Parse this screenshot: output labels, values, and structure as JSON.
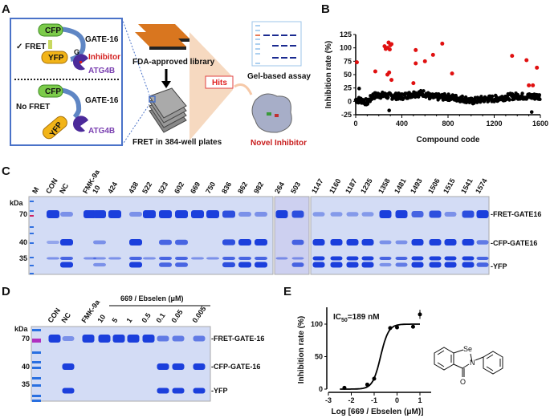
{
  "panels": {
    "a": {
      "label": "A",
      "fret_label": "✓ FRET",
      "no_fret_label": "No FRET",
      "cfp": "CFP",
      "yfp": "YFP",
      "gate16": "GATE-16",
      "g_letter": "G",
      "inhibitor": "Inhibitor",
      "atg4b": "ATG4B",
      "library": "FDA-approved library",
      "plates": "FRET in 384-well plates",
      "hits": "Hits",
      "gel_assay": "Gel-based assay",
      "novel_inhibitor": "Novel Inhibitor",
      "colors": {
        "box": "#4a72c8",
        "cfp": "#7ccb4a",
        "yfp": "#f2b418",
        "atg4b": "#4b2a9a",
        "inhibitor": "#d42020",
        "plate": "#d9761f",
        "funnel": "#f6d9c0"
      }
    },
    "b": {
      "label": "B"
    },
    "c": {
      "label": "C",
      "kda": "kDa",
      "markers": [
        "70",
        "40",
        "35"
      ],
      "band_labels": [
        "-FRET-GATE16",
        "-CFP-GATE16",
        "-YFP"
      ],
      "marker_lane": "M",
      "gels": [
        {
          "lanes": [
            {
              "name": "CON",
              "bands": [
                3,
                0.5,
                1,
                0
              ]
            },
            {
              "name": "NC",
              "bands": [
                1,
                3,
                2,
                3
              ]
            },
            {
              "name": "FMK-9a",
              "bands": [
                3,
                0,
                1,
                0
              ]
            },
            {
              "name": "10",
              "bands": [
                3,
                1,
                1,
                1
              ]
            },
            {
              "name": "424",
              "bands": [
                3,
                0,
                1,
                0
              ]
            },
            {
              "name": "438",
              "bands": [
                1,
                3,
                2,
                3
              ]
            },
            {
              "name": "522",
              "bands": [
                3,
                0,
                1,
                0
              ]
            },
            {
              "name": "523",
              "bands": [
                3,
                2,
                2,
                2
              ]
            },
            {
              "name": "602",
              "bands": [
                3,
                2,
                2,
                2
              ]
            },
            {
              "name": "669",
              "bands": [
                3,
                0,
                1,
                0
              ]
            },
            {
              "name": "750",
              "bands": [
                3,
                0,
                1,
                0
              ]
            },
            {
              "name": "836",
              "bands": [
                2.5,
                2.5,
                2,
                2.5
              ]
            },
            {
              "name": "862",
              "bands": [
                1,
                3,
                2,
                3
              ]
            },
            {
              "name": "982",
              "bands": [
                1,
                3,
                2,
                3
              ]
            }
          ]
        },
        {
          "lanes": [
            {
              "name": "264",
              "bands": [
                3,
                0,
                1,
                0
              ]
            },
            {
              "name": "503",
              "bands": [
                2.5,
                2,
                1,
                2
              ]
            }
          ]
        },
        {
          "lanes": [
            {
              "name": "1147",
              "bands": [
                0.8,
                3,
                3,
                3
              ]
            },
            {
              "name": "1160",
              "bands": [
                0.8,
                3,
                3,
                3
              ]
            },
            {
              "name": "1187",
              "bands": [
                0.8,
                3,
                3,
                3
              ]
            },
            {
              "name": "1235",
              "bands": [
                0.8,
                3,
                3,
                3
              ]
            },
            {
              "name": "1358",
              "bands": [
                3,
                1,
                2,
                1
              ]
            },
            {
              "name": "1481",
              "bands": [
                3,
                1,
                2,
                1.5
              ]
            },
            {
              "name": "1493",
              "bands": [
                2,
                3,
                3,
                3
              ]
            },
            {
              "name": "1506",
              "bands": [
                2.5,
                3,
                3,
                3
              ]
            },
            {
              "name": "1515",
              "bands": [
                1,
                3,
                3,
                3
              ]
            },
            {
              "name": "1541",
              "bands": [
                2.5,
                3,
                3,
                3
              ]
            },
            {
              "name": "1574",
              "bands": [
                3,
                1.5,
                2,
                2
              ]
            }
          ]
        }
      ]
    },
    "d": {
      "label": "D",
      "kda": "kDa",
      "markers": [
        "70",
        "40",
        "35"
      ],
      "band_labels": [
        "-FRET-GATE-16",
        "-CFP-GATE-16",
        "-YFP"
      ],
      "dose_header": "669 / Ebselen (μM)",
      "lanes": [
        {
          "name": "CON",
          "bands": [
            3,
            0,
            0,
            0
          ]
        },
        {
          "name": "NC",
          "bands": [
            1,
            3,
            0,
            3
          ]
        },
        {
          "name": "FMK-9a",
          "bands": [
            3,
            0,
            0,
            0
          ]
        },
        {
          "name": "10",
          "bands": [
            3,
            0,
            0,
            0
          ]
        },
        {
          "name": "5",
          "bands": [
            3,
            0,
            0,
            0
          ]
        },
        {
          "name": "1",
          "bands": [
            3,
            0,
            0,
            0
          ]
        },
        {
          "name": "0.5",
          "bands": [
            3,
            0,
            0,
            0
          ]
        },
        {
          "name": "0.1",
          "bands": [
            1.5,
            3,
            0,
            3
          ]
        },
        {
          "name": "0.05",
          "bands": [
            1.5,
            3,
            0,
            3
          ]
        },
        {
          "name": "0.005",
          "bands": [
            1.5,
            3,
            0,
            3
          ]
        }
      ]
    },
    "e": {
      "label": "E",
      "ic50_prefix": "IC",
      "ic50_sub": "50",
      "ic50_value": "=189 nM",
      "structure": {
        "se": "Se",
        "n": "N",
        "o": "O"
      }
    }
  },
  "chart_data": [
    {
      "type": "scatter",
      "xlabel": "Compound code",
      "ylabel": "Inhibition rate (%)",
      "xlim": [
        0,
        1600
      ],
      "ylim": [
        -25,
        125
      ],
      "xticks": [
        "0",
        "400",
        "800",
        "1200",
        "1600"
      ],
      "yticks": [
        "-25",
        "0",
        "25",
        "50",
        "75",
        "100",
        "125"
      ],
      "grid": false,
      "series": [
        {
          "color": "#e01010",
          "points": [
            [
              10,
              73
            ],
            [
              170,
              56
            ],
            [
              250,
              103
            ],
            [
              260,
              98
            ],
            [
              275,
              100
            ],
            [
              285,
              110
            ],
            [
              295,
              97
            ],
            [
              300,
              105
            ],
            [
              310,
              107
            ],
            [
              275,
              50
            ],
            [
              290,
              54
            ],
            [
              310,
              40
            ],
            [
              500,
              34
            ],
            [
              520,
              96
            ],
            [
              520,
              71
            ],
            [
              600,
              75
            ],
            [
              670,
              87
            ],
            [
              750,
              108
            ],
            [
              835,
              52
            ],
            [
              1355,
              85
            ],
            [
              1480,
              77
            ],
            [
              1500,
              30
            ],
            [
              1535,
              30
            ],
            [
              1570,
              63
            ]
          ]
        },
        {
          "color": "#000000",
          "points": [
            [
              30,
              24
            ],
            [
              290,
              -17
            ],
            [
              1525,
              -20
            ]
          ]
        },
        {
          "color": "#000000",
          "baseline": [
            [
              0,
              3
            ],
            [
              50,
              2
            ],
            [
              100,
              -2
            ],
            [
              150,
              10
            ],
            [
              200,
              12
            ],
            [
              300,
              10
            ],
            [
              400,
              9
            ],
            [
              500,
              14
            ],
            [
              600,
              15
            ],
            [
              650,
              8
            ],
            [
              800,
              8
            ],
            [
              950,
              4
            ],
            [
              1000,
              0
            ],
            [
              1100,
              4
            ],
            [
              1200,
              5
            ],
            [
              1300,
              8
            ],
            [
              1400,
              10
            ],
            [
              1500,
              9
            ],
            [
              1600,
              9
            ]
          ]
        }
      ]
    },
    {
      "type": "line",
      "xlabel": "Log [669 / Ebselen (μM)]",
      "ylabel": "Inhibition rate (%)",
      "xlim": [
        -3,
        1
      ],
      "ylim": [
        0,
        125
      ],
      "xticks": [
        "-3",
        "-2",
        "-1",
        "0",
        "1"
      ],
      "yticks": [
        "0",
        "50",
        "100"
      ],
      "ic50_nM": 189,
      "points": [
        [
          -2.3,
          2
        ],
        [
          -1.3,
          7
        ],
        [
          -1.0,
          16
        ],
        [
          -0.3,
          94
        ],
        [
          0,
          95
        ],
        [
          0.7,
          96
        ],
        [
          1,
          115
        ]
      ],
      "errors": [
        0,
        0,
        0,
        0,
        0,
        0,
        7
      ],
      "fit": {
        "bottom": 0,
        "top": 100,
        "log_ic50": -0.72,
        "hill": 2.5
      }
    }
  ]
}
